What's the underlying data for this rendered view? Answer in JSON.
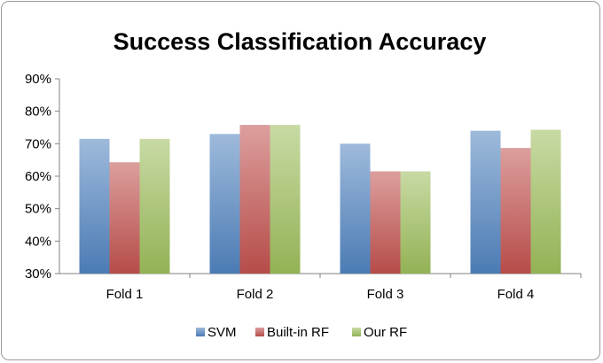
{
  "chart_data": {
    "type": "bar",
    "title": "Success Classification Accuracy",
    "categories": [
      "Fold 1",
      "Fold 2",
      "Fold 3",
      "Fold 4"
    ],
    "series": [
      {
        "name": "SVM",
        "values": [
          71.5,
          73.0,
          70.0,
          74.0
        ],
        "color": "#4f81bd"
      },
      {
        "name": "Built-in RF",
        "values": [
          64.3,
          75.8,
          61.5,
          68.7
        ],
        "color": "#c0504d"
      },
      {
        "name": "Our RF",
        "values": [
          71.5,
          75.8,
          61.5,
          74.3
        ],
        "color": "#9bbb59"
      }
    ],
    "ylim": [
      30,
      90
    ],
    "yticks": [
      30,
      40,
      50,
      60,
      70,
      80,
      90
    ],
    "ytick_labels": [
      "30%",
      "40%",
      "50%",
      "60%",
      "70%",
      "80%",
      "90%"
    ],
    "grid": false,
    "legend_position": "bottom"
  }
}
